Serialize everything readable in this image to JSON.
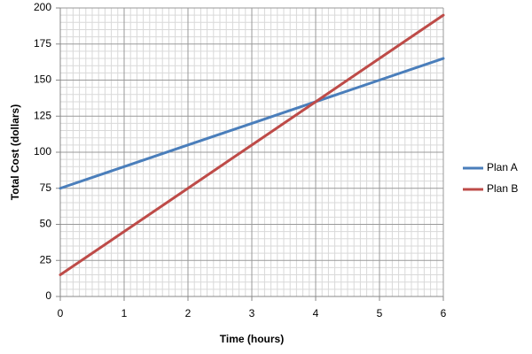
{
  "chart_data": {
    "type": "line",
    "x_label": "Time (hours)",
    "y_label": "Total Cost (dollars)",
    "x": [
      0,
      1,
      2,
      3,
      4,
      5,
      6
    ],
    "series": [
      {
        "name": "Plan A",
        "color": "#4a7ebb",
        "values": [
          75,
          90,
          105,
          120,
          135,
          150,
          165
        ]
      },
      {
        "name": "Plan B",
        "color": "#be4b48",
        "values": [
          15,
          45,
          75,
          105,
          135,
          165,
          195
        ]
      }
    ],
    "xlim": [
      0,
      6
    ],
    "xticks": [
      0,
      1,
      2,
      3,
      4,
      5,
      6
    ],
    "ylim": [
      0,
      200
    ],
    "yticks": [
      0,
      25,
      50,
      75,
      100,
      125,
      150,
      175,
      200
    ],
    "grid": true,
    "legend": "right"
  }
}
